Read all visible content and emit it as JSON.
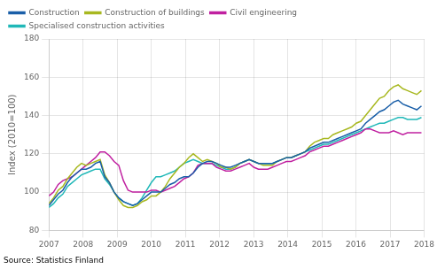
{
  "chart_data": {
    "type": "line",
    "ylabel": "Index (2010=100)",
    "source": "Source: Statistics Finland",
    "xlim": [
      2007,
      2018
    ],
    "ylim": [
      80,
      180
    ],
    "xticks": [
      2007,
      2008,
      2009,
      2010,
      2011,
      2012,
      2013,
      2014,
      2015,
      2016,
      2017,
      2018
    ],
    "yticks": [
      80,
      100,
      120,
      140,
      160,
      180
    ],
    "grid": true,
    "legend": "upper left",
    "x": [
      2007,
      2007.1365,
      2007.273,
      2007.4095,
      2007.546,
      2007.6825,
      2007.819,
      2007.9555,
      2008.092,
      2008.2285,
      2008.365,
      2008.5015,
      2008.638,
      2008.7745,
      2008.911,
      2009.0475,
      2009.184,
      2009.3205,
      2009.457,
      2009.5935,
      2009.73,
      2009.8665,
      2010.003,
      2010.1395,
      2010.276,
      2010.4125,
      2010.549,
      2010.6855,
      2010.822,
      2010.9585,
      2011.095,
      2011.2315,
      2011.368,
      2011.5045,
      2011.641,
      2011.7775,
      2011.914,
      2012.0505,
      2012.187,
      2012.3235,
      2012.46,
      2012.5965,
      2012.733,
      2012.8695,
      2013.006,
      2013.1425,
      2013.279,
      2013.4155,
      2013.552,
      2013.6885,
      2013.825,
      2013.9615,
      2014.098,
      2014.2345,
      2014.371,
      2014.5075,
      2014.644,
      2014.7805,
      2014.917,
      2015.0535,
      2015.19,
      2015.3265,
      2015.463,
      2015.5995,
      2015.736,
      2015.8725,
      2016.009,
      2016.1455,
      2016.282,
      2016.4185,
      2016.555,
      2016.6915,
      2016.828,
      2016.9645,
      2017.101,
      2017.2375,
      2017.374,
      2017.5105,
      2017.647,
      2017.7835,
      2017.92
    ],
    "series": [
      {
        "name": "Construction",
        "color": "#1a5fa8",
        "values": [
          93,
          96,
          99,
          101,
          105,
          108,
          110,
          112,
          112,
          113,
          115,
          116,
          108,
          105,
          100,
          97,
          95,
          94,
          93,
          94,
          96,
          98,
          100,
          100,
          100,
          102,
          104,
          105,
          107,
          108,
          108,
          110,
          113,
          115,
          116,
          116,
          115,
          114,
          113,
          113,
          114,
          115,
          116,
          117,
          116,
          115,
          115,
          115,
          115,
          116,
          117,
          118,
          118,
          119,
          120,
          121,
          123,
          124,
          125,
          126,
          126,
          127,
          128,
          129,
          130,
          131,
          132,
          133,
          136,
          138,
          140,
          142,
          143,
          145,
          147,
          148,
          146,
          145,
          144,
          143,
          145
        ]
      },
      {
        "name": "Construction of buildings",
        "color": "#a8b820",
        "values": [
          94,
          97,
          101,
          103,
          107,
          110,
          113,
          115,
          114,
          115,
          116,
          117,
          109,
          105,
          100,
          96,
          93,
          92,
          92,
          93,
          95,
          96,
          98,
          98,
          100,
          103,
          107,
          110,
          113,
          115,
          118,
          120,
          118,
          116,
          117,
          116,
          115,
          113,
          113,
          112,
          113,
          115,
          116,
          117,
          116,
          115,
          114,
          114,
          114,
          116,
          117,
          118,
          118,
          119,
          120,
          121,
          124,
          126,
          127,
          128,
          128,
          130,
          131,
          132,
          133,
          134,
          136,
          137,
          140,
          143,
          146,
          149,
          150,
          153,
          155,
          156,
          154,
          153,
          152,
          151,
          153
        ]
      },
      {
        "name": "Civil engineering",
        "color": "#c020a0",
        "values": [
          98,
          100,
          104,
          106,
          107,
          108,
          110,
          112,
          114,
          116,
          118,
          121,
          121,
          119,
          116,
          114,
          106,
          101,
          100,
          100,
          100,
          100,
          101,
          101,
          100,
          101,
          102,
          103,
          105,
          107,
          108,
          110,
          114,
          115,
          115,
          115,
          113,
          112,
          111,
          111,
          112,
          113,
          114,
          115,
          113,
          112,
          112,
          112,
          113,
          114,
          115,
          116,
          116,
          117,
          118,
          119,
          121,
          122,
          123,
          124,
          124,
          125,
          126,
          127,
          128,
          129,
          130,
          131,
          133,
          133,
          132,
          131,
          131,
          131,
          132,
          131,
          130,
          131,
          131,
          131,
          131
        ]
      },
      {
        "name": "Specialised construction activities",
        "color": "#20b8b8",
        "values": [
          92,
          94,
          97,
          99,
          103,
          105,
          107,
          109,
          110,
          111,
          112,
          112,
          107,
          104,
          100,
          97,
          95,
          94,
          93,
          94,
          97,
          101,
          105,
          108,
          108,
          109,
          110,
          111,
          113,
          115,
          116,
          117,
          116,
          115,
          115,
          115,
          114,
          113,
          112,
          112,
          113,
          115,
          116,
          117,
          116,
          115,
          115,
          115,
          115,
          116,
          117,
          118,
          118,
          119,
          120,
          121,
          122,
          123,
          124,
          125,
          125,
          126,
          127,
          128,
          129,
          130,
          131,
          132,
          133,
          134,
          135,
          136,
          136,
          137,
          138,
          139,
          139,
          138,
          138,
          138,
          139
        ]
      }
    ]
  }
}
